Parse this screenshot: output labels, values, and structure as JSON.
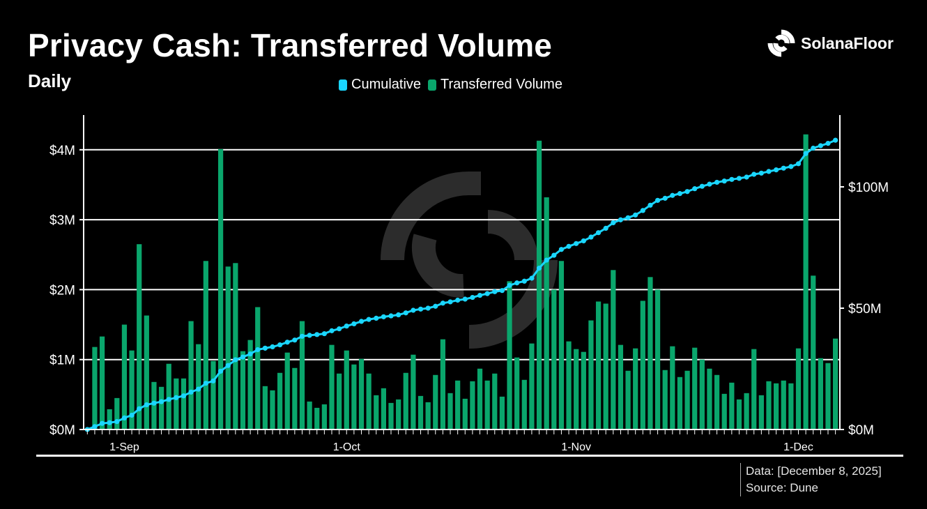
{
  "header": {
    "title": "Privacy Cash: Transferred Volume",
    "subtitle": "Daily"
  },
  "brand": {
    "logo_text": "SolanaFloor",
    "logo_icon": "solanafloor-logo-icon"
  },
  "legend": {
    "items": [
      {
        "label": "Cumulative",
        "color": "#1ad6ff"
      },
      {
        "label": "Transferred Volume",
        "color": "#0aa66c"
      }
    ]
  },
  "footer": {
    "data_line": "Data: [December 8, 2025]",
    "source_line": "Source: Dune"
  },
  "chart_data": {
    "type": "bar",
    "title": "Privacy Cash: Transferred Volume",
    "subtitle": "Daily",
    "xlabel": "",
    "ylabel": "",
    "x_tick_labels": [
      {
        "label": "1-Sep",
        "index": 5
      },
      {
        "label": "1-Oct",
        "index": 35
      },
      {
        "label": "1-Nov",
        "index": 66
      },
      {
        "label": "1-Dec",
        "index": 96
      }
    ],
    "left_axis": {
      "ylim": [
        0,
        4.5
      ],
      "ticks": [
        0,
        1,
        2,
        3,
        4
      ],
      "tick_labels": [
        "$0M",
        "$1M",
        "$2M",
        "$3M",
        "$4M"
      ]
    },
    "right_axis": {
      "ylim": [
        0,
        130
      ],
      "ticks": [
        0,
        50,
        100
      ],
      "tick_labels": [
        "$0M",
        "$50M",
        "$100M"
      ]
    },
    "grid": true,
    "legend_position": "top-center",
    "series": [
      {
        "name": "Transferred Volume",
        "type": "bar",
        "axis": "left",
        "color": "#0aa66c",
        "unit": "$M",
        "values": [
          0.02,
          1.18,
          1.33,
          0.29,
          0.45,
          1.5,
          1.13,
          2.65,
          1.63,
          0.68,
          0.61,
          0.94,
          0.73,
          0.73,
          1.55,
          1.22,
          2.41,
          0.98,
          4.01,
          2.33,
          2.38,
          1.12,
          1.28,
          1.75,
          0.62,
          0.56,
          0.81,
          1.1,
          0.88,
          1.55,
          0.4,
          0.31,
          0.36,
          1.21,
          0.8,
          1.13,
          0.93,
          1.01,
          0.8,
          0.49,
          0.59,
          0.38,
          0.43,
          0.81,
          1.07,
          0.48,
          0.39,
          0.78,
          1.29,
          0.52,
          0.7,
          0.44,
          0.69,
          0.87,
          0.7,
          0.8,
          0.47,
          2.12,
          1.03,
          0.71,
          1.23,
          4.13,
          3.32,
          2.0,
          2.41,
          1.26,
          1.15,
          1.11,
          1.56,
          1.83,
          1.8,
          2.28,
          1.21,
          0.84,
          1.16,
          1.84,
          2.18,
          2.0,
          0.85,
          1.19,
          0.75,
          0.84,
          1.17,
          1.0,
          0.87,
          0.78,
          0.51,
          0.67,
          0.43,
          0.52,
          1.15,
          0.49,
          0.69,
          0.66,
          0.7,
          0.66,
          1.16,
          4.22,
          2.2,
          1.02,
          0.95,
          1.3
        ]
      },
      {
        "name": "Cumulative",
        "type": "line",
        "axis": "right",
        "color": "#1ad6ff",
        "unit": "$M",
        "values": [
          0.02,
          1.2,
          2.53,
          2.82,
          3.27,
          4.77,
          5.9,
          8.55,
          10.18,
          10.86,
          11.47,
          12.41,
          13.14,
          13.87,
          15.42,
          16.64,
          19.05,
          20.03,
          24.04,
          26.37,
          28.75,
          29.87,
          31.15,
          32.9,
          33.52,
          34.08,
          34.89,
          35.99,
          36.87,
          38.42,
          38.82,
          39.13,
          39.49,
          40.7,
          41.5,
          42.63,
          43.56,
          44.57,
          45.37,
          45.86,
          46.45,
          46.83,
          47.26,
          48.07,
          49.14,
          49.62,
          50.01,
          50.79,
          52.08,
          52.6,
          53.3,
          53.74,
          54.43,
          55.3,
          56.0,
          56.8,
          57.27,
          59.39,
          60.42,
          61.13,
          62.36,
          66.49,
          69.81,
          71.81,
          74.22,
          75.48,
          76.63,
          77.74,
          79.3,
          81.13,
          82.93,
          85.21,
          86.42,
          87.26,
          88.42,
          90.26,
          92.44,
          94.44,
          95.29,
          96.48,
          97.23,
          98.07,
          99.24,
          100.24,
          101.11,
          101.89,
          102.4,
          103.07,
          103.5,
          104.02,
          105.17,
          105.66,
          106.35,
          107.01,
          107.71,
          108.37,
          109.53,
          113.75,
          115.95,
          116.97,
          117.92,
          119.22
        ]
      }
    ]
  }
}
